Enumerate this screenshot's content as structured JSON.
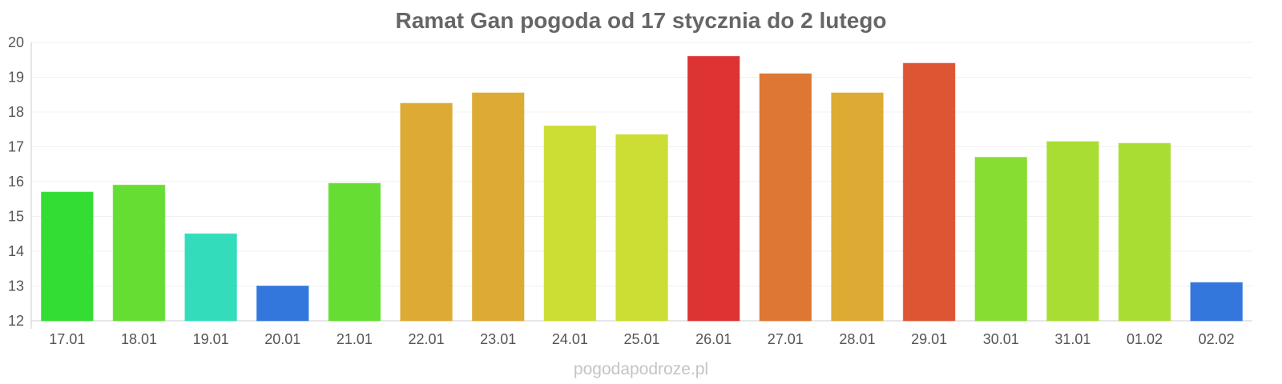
{
  "chart_data": {
    "type": "bar",
    "title": "Ramat Gan pogoda od 17 stycznia do 2 lutego",
    "xlabel": "",
    "ylabel": "",
    "ylim": [
      12,
      20
    ],
    "yticks": [
      12,
      13,
      14,
      15,
      16,
      17,
      18,
      19,
      20
    ],
    "grid": true,
    "legend": "none",
    "categories": [
      "17.01",
      "18.01",
      "19.01",
      "20.01",
      "21.01",
      "22.01",
      "23.01",
      "24.01",
      "25.01",
      "26.01",
      "27.01",
      "28.01",
      "29.01",
      "30.01",
      "31.01",
      "01.02",
      "02.02"
    ],
    "values": [
      15.7,
      15.9,
      14.5,
      13.0,
      15.95,
      18.25,
      18.55,
      17.6,
      17.35,
      19.6,
      19.1,
      18.55,
      19.4,
      16.7,
      17.15,
      17.1,
      13.1
    ],
    "colors": [
      "#33dd33",
      "#66dd33",
      "#33ddbb",
      "#3377dd",
      "#66dd33",
      "#ddaa33",
      "#ddaa33",
      "#ccdd33",
      "#ccdd33",
      "#dd3333",
      "#dd7733",
      "#ddaa33",
      "#dd5533",
      "#88dd33",
      "#aadd33",
      "#aadd33",
      "#3377dd"
    ]
  },
  "watermark": "pogodapodroze.pl"
}
